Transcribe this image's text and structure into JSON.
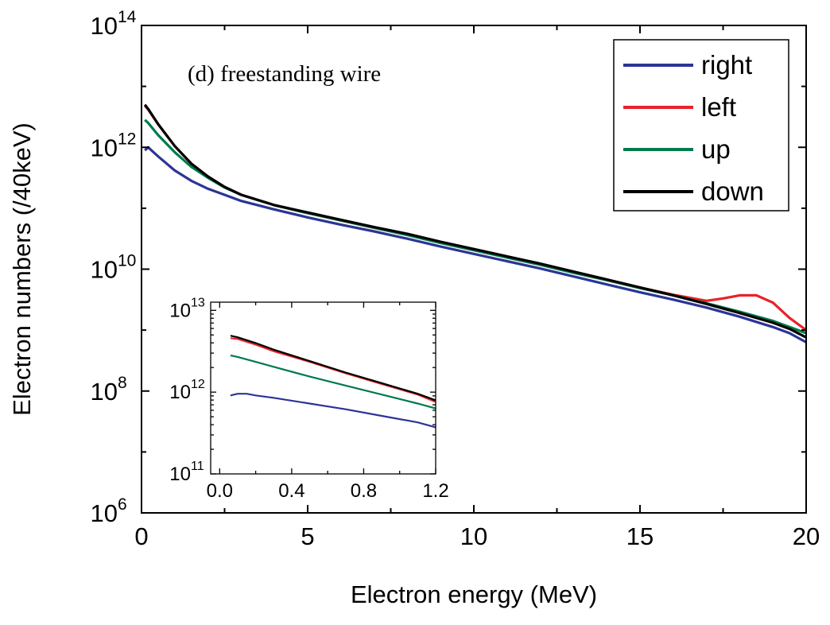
{
  "chart_data": [
    {
      "type": "line",
      "xlabel": "Electron energy (MeV)",
      "ylabel": "Electron numbers (/40keV)",
      "annotation": "(d) freestanding wire",
      "xlim": [
        0,
        20
      ],
      "ylim_log10": [
        6,
        14
      ],
      "yscale": "log",
      "x_ticks": [
        {
          "value": 0,
          "label": "0"
        },
        {
          "value": 5,
          "label": "5"
        },
        {
          "value": 10,
          "label": "10"
        },
        {
          "value": 15,
          "label": "15"
        },
        {
          "value": 20,
          "label": "20"
        }
      ],
      "y_ticks": [
        {
          "exp": 6,
          "base": "10",
          "sup": "6"
        },
        {
          "exp": 8,
          "base": "10",
          "sup": "8"
        },
        {
          "exp": 10,
          "base": "10",
          "sup": "10"
        },
        {
          "exp": 12,
          "base": "10",
          "sup": "12"
        },
        {
          "exp": 14,
          "base": "10",
          "sup": "14"
        }
      ],
      "legend_position": "top-right",
      "series": [
        {
          "name": "right",
          "color": "#2b3596",
          "x": [
            0.1,
            0.2,
            0.5,
            1,
            1.5,
            2,
            2.5,
            3,
            4,
            5,
            6,
            7,
            8,
            9,
            10,
            11,
            12,
            13,
            14,
            15,
            16,
            17,
            18,
            19,
            19.5,
            20
          ],
          "log10_y": [
            11.95,
            12.0,
            11.85,
            11.62,
            11.45,
            11.32,
            11.22,
            11.12,
            10.98,
            10.85,
            10.73,
            10.62,
            10.5,
            10.37,
            10.25,
            10.13,
            10.01,
            9.88,
            9.75,
            9.62,
            9.5,
            9.37,
            9.22,
            9.05,
            8.95,
            8.8
          ]
        },
        {
          "name": "left",
          "color": "#e8232a",
          "x": [
            0.1,
            0.2,
            0.5,
            1,
            1.5,
            2,
            2.5,
            3,
            4,
            5,
            6,
            7,
            8,
            9,
            10,
            11,
            12,
            13,
            14,
            15,
            16,
            17,
            17.5,
            18,
            18.5,
            19,
            19.5,
            20
          ],
          "log10_y": [
            12.68,
            12.62,
            12.38,
            12.02,
            11.73,
            11.52,
            11.35,
            11.22,
            11.05,
            10.92,
            10.8,
            10.68,
            10.57,
            10.44,
            10.32,
            10.2,
            10.08,
            9.95,
            9.83,
            9.7,
            9.58,
            9.48,
            9.52,
            9.57,
            9.57,
            9.45,
            9.2,
            9.0
          ]
        },
        {
          "name": "up",
          "color": "#007a4c",
          "x": [
            0.1,
            0.2,
            0.5,
            1,
            1.5,
            2,
            2.5,
            3,
            4,
            5,
            6,
            7,
            8,
            9,
            10,
            11,
            12,
            13,
            14,
            15,
            16,
            17,
            18,
            19,
            19.5,
            20
          ],
          "log10_y": [
            12.45,
            12.4,
            12.2,
            11.92,
            11.68,
            11.5,
            11.34,
            11.22,
            11.05,
            10.92,
            10.8,
            10.68,
            10.56,
            10.43,
            10.31,
            10.19,
            10.07,
            9.94,
            9.82,
            9.69,
            9.57,
            9.44,
            9.3,
            9.15,
            9.05,
            8.95
          ]
        },
        {
          "name": "down",
          "color": "#000000",
          "x": [
            0.1,
            0.2,
            0.5,
            1,
            1.5,
            2,
            2.5,
            3,
            4,
            5,
            6,
            7,
            8,
            9,
            10,
            11,
            12,
            13,
            14,
            15,
            16,
            17,
            18,
            19,
            19.5,
            20
          ],
          "log10_y": [
            12.7,
            12.63,
            12.38,
            12.02,
            11.73,
            11.52,
            11.35,
            11.22,
            11.05,
            10.93,
            10.81,
            10.69,
            10.58,
            10.45,
            10.33,
            10.21,
            10.09,
            9.96,
            9.83,
            9.7,
            9.57,
            9.43,
            9.28,
            9.12,
            9.02,
            8.88
          ]
        }
      ]
    },
    {
      "type": "line",
      "role": "inset",
      "xlim": [
        -0.05,
        1.2
      ],
      "ylim_log10": [
        11,
        13.1
      ],
      "yscale": "log",
      "x_ticks": [
        {
          "value": 0.0,
          "label": "0.0"
        },
        {
          "value": 0.4,
          "label": "0.4"
        },
        {
          "value": 0.8,
          "label": "0.8"
        },
        {
          "value": 1.2,
          "label": "1.2"
        }
      ],
      "y_ticks": [
        {
          "exp": 11,
          "base": "10",
          "sup": "11"
        },
        {
          "exp": 12,
          "base": "10",
          "sup": "12"
        },
        {
          "exp": 13,
          "base": "10",
          "sup": "13"
        }
      ],
      "series": [
        {
          "name": "right",
          "color": "#2b3596",
          "x": [
            0.06,
            0.1,
            0.15,
            0.2,
            0.3,
            0.5,
            0.7,
            0.9,
            1.1,
            1.2
          ],
          "log10_y": [
            11.96,
            11.98,
            11.98,
            11.96,
            11.93,
            11.86,
            11.79,
            11.71,
            11.63,
            11.57
          ]
        },
        {
          "name": "left",
          "color": "#e8232a",
          "x": [
            0.06,
            0.1,
            0.2,
            0.3,
            0.5,
            0.7,
            0.9,
            1.1,
            1.2
          ],
          "log10_y": [
            12.66,
            12.65,
            12.58,
            12.5,
            12.37,
            12.23,
            12.1,
            11.97,
            11.88
          ]
        },
        {
          "name": "up",
          "color": "#007a4c",
          "x": [
            0.06,
            0.1,
            0.2,
            0.3,
            0.5,
            0.7,
            0.9,
            1.1,
            1.2
          ],
          "log10_y": [
            12.45,
            12.43,
            12.37,
            12.31,
            12.19,
            12.08,
            11.97,
            11.86,
            11.8
          ]
        },
        {
          "name": "down",
          "color": "#000000",
          "x": [
            0.06,
            0.1,
            0.2,
            0.3,
            0.5,
            0.7,
            0.9,
            1.1,
            1.2
          ],
          "log10_y": [
            12.69,
            12.67,
            12.6,
            12.52,
            12.38,
            12.24,
            12.11,
            11.98,
            11.9
          ]
        }
      ]
    }
  ]
}
